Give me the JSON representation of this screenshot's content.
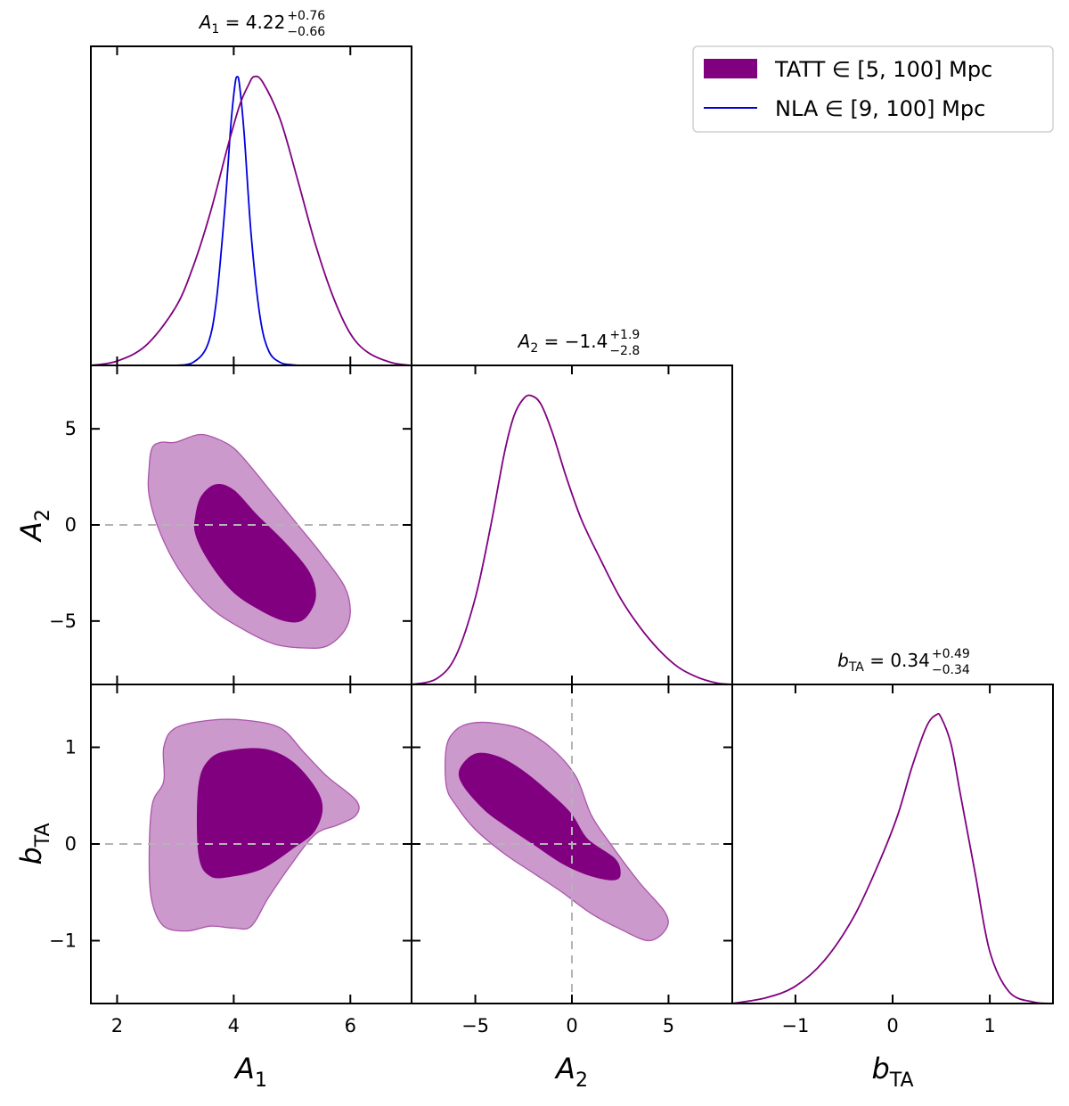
{
  "chart_data": {
    "type": "corner",
    "parameters": [
      {
        "name": "A_1",
        "label": "A",
        "subscript": "1",
        "range": [
          1.55,
          7.05
        ],
        "ticks": [
          2,
          4,
          6
        ],
        "title": {
          "symbol": "A",
          "sub": "1",
          "value": " = 4.22",
          "plus": "+0.76",
          "minus": "−0.66"
        }
      },
      {
        "name": "A_2",
        "label": "A",
        "subscript": "2",
        "range": [
          -8.3,
          8.3
        ],
        "ticks": [
          -5,
          0,
          5
        ],
        "title": {
          "symbol": "A",
          "sub": "2",
          "value": " = −1.4",
          "plus": "+1.9",
          "minus": "−2.8"
        }
      },
      {
        "name": "b_TA",
        "label": "b",
        "subscript": "TA",
        "range": [
          -1.65,
          1.65
        ],
        "ticks": [
          -1,
          0,
          1
        ],
        "title": {
          "symbol": "b",
          "sub": "TA",
          "value": " = 0.34",
          "plus": "+0.49",
          "minus": "−0.34"
        }
      }
    ],
    "tick_labels": {
      "A_1": [
        "2",
        "4",
        "6"
      ],
      "A_2": [
        "−5",
        "0",
        "5"
      ],
      "b_TA": [
        "−1",
        "0",
        "1"
      ]
    },
    "series": [
      {
        "name": "TATT",
        "legend": "TATT  ∈ [5, 100] Mpc",
        "color": "#800080",
        "light_color": "#cc99cc",
        "style": "filled"
      },
      {
        "name": "NLA",
        "legend": "NLA  ∈ [9, 100] Mpc",
        "color": "#0000dd",
        "style": "line"
      }
    ],
    "marginals": {
      "A_1": {
        "TATT": {
          "x": [
            1.55,
            2.0,
            2.5,
            3.0,
            3.3,
            3.6,
            3.9,
            4.1,
            4.25,
            4.35,
            4.5,
            4.8,
            5.1,
            5.4,
            5.7,
            6.0,
            6.3,
            6.7,
            7.05
          ],
          "y": [
            0,
            0.015,
            0.07,
            0.2,
            0.34,
            0.53,
            0.76,
            0.9,
            0.97,
            1.0,
            0.98,
            0.85,
            0.64,
            0.42,
            0.24,
            0.11,
            0.045,
            0.01,
            0
          ]
        },
        "NLA": {
          "x": [
            3.0,
            3.3,
            3.55,
            3.7,
            3.85,
            3.95,
            4.02,
            4.06,
            4.1,
            4.18,
            4.3,
            4.45,
            4.6,
            4.8,
            5.0,
            5.2
          ],
          "y": [
            0,
            0.01,
            0.07,
            0.22,
            0.55,
            0.83,
            0.97,
            1.0,
            0.97,
            0.8,
            0.45,
            0.17,
            0.05,
            0.01,
            0.002,
            0
          ]
        }
      },
      "A_2": {
        "TATT": {
          "x": [
            -8.3,
            -7.0,
            -6.0,
            -5.0,
            -4.2,
            -3.5,
            -3.0,
            -2.5,
            -2.1,
            -1.6,
            -1.0,
            -0.3,
            0.5,
            1.5,
            2.5,
            3.5,
            4.5,
            5.5,
            6.5,
            7.5,
            8.3
          ],
          "y": [
            0,
            0.02,
            0.1,
            0.3,
            0.55,
            0.8,
            0.93,
            0.99,
            1.0,
            0.97,
            0.87,
            0.72,
            0.57,
            0.43,
            0.3,
            0.2,
            0.12,
            0.06,
            0.025,
            0.005,
            0
          ]
        }
      },
      "b_TA": {
        "TATT": {
          "x": [
            -1.65,
            -1.3,
            -1.0,
            -0.7,
            -0.4,
            -0.15,
            0.05,
            0.2,
            0.35,
            0.45,
            0.5,
            0.6,
            0.7,
            0.85,
            1.0,
            1.2,
            1.45,
            1.65
          ],
          "y": [
            0,
            0.02,
            0.06,
            0.15,
            0.3,
            0.48,
            0.65,
            0.82,
            0.96,
            1.0,
            0.99,
            0.9,
            0.72,
            0.45,
            0.18,
            0.04,
            0.005,
            0
          ]
        }
      }
    },
    "contours": [
      {
        "x": "A_1",
        "y": "A_2",
        "outer": [
          [
            2.55,
            3.0
          ],
          [
            2.6,
            4.0
          ],
          [
            2.75,
            4.3
          ],
          [
            3.0,
            4.3
          ],
          [
            3.4,
            4.7
          ],
          [
            3.7,
            4.5
          ],
          [
            4.0,
            4.0
          ],
          [
            4.3,
            3.0
          ],
          [
            4.7,
            1.5
          ],
          [
            5.1,
            0
          ],
          [
            5.5,
            -1.5
          ],
          [
            5.9,
            -3.2
          ],
          [
            6.0,
            -4.5
          ],
          [
            5.9,
            -5.5
          ],
          [
            5.6,
            -6.3
          ],
          [
            5.2,
            -6.4
          ],
          [
            4.7,
            -6.2
          ],
          [
            4.2,
            -5.5
          ],
          [
            3.6,
            -4.3
          ],
          [
            3.1,
            -2.5
          ],
          [
            2.75,
            -0.5
          ],
          [
            2.55,
            1.5
          ]
        ],
        "inner": [
          [
            3.35,
            0.5
          ],
          [
            3.45,
            1.5
          ],
          [
            3.7,
            2.1
          ],
          [
            4.0,
            1.8
          ],
          [
            4.4,
            0.5
          ],
          [
            4.9,
            -1.0
          ],
          [
            5.3,
            -2.5
          ],
          [
            5.4,
            -3.8
          ],
          [
            5.2,
            -4.9
          ],
          [
            4.9,
            -5.0
          ],
          [
            4.5,
            -4.5
          ],
          [
            4.0,
            -3.5
          ],
          [
            3.6,
            -2.0
          ],
          [
            3.35,
            -0.5
          ]
        ]
      },
      {
        "x": "A_1",
        "y": "b_TA",
        "outer": [
          [
            2.6,
            0.4
          ],
          [
            2.8,
            0.65
          ],
          [
            2.8,
            1.0
          ],
          [
            3.0,
            1.2
          ],
          [
            3.6,
            1.28
          ],
          [
            4.2,
            1.28
          ],
          [
            4.8,
            1.2
          ],
          [
            5.2,
            0.95
          ],
          [
            5.6,
            0.7
          ],
          [
            6.1,
            0.45
          ],
          [
            6.1,
            0.3
          ],
          [
            5.8,
            0.2
          ],
          [
            5.4,
            0.1
          ],
          [
            5.0,
            -0.2
          ],
          [
            4.6,
            -0.55
          ],
          [
            4.3,
            -0.85
          ],
          [
            4.0,
            -0.87
          ],
          [
            3.6,
            -0.85
          ],
          [
            3.2,
            -0.9
          ],
          [
            2.8,
            -0.85
          ],
          [
            2.6,
            -0.6
          ],
          [
            2.55,
            -0.2
          ]
        ],
        "inner": [
          [
            3.4,
            0.6
          ],
          [
            3.6,
            0.88
          ],
          [
            4.0,
            0.97
          ],
          [
            4.6,
            0.97
          ],
          [
            5.1,
            0.8
          ],
          [
            5.5,
            0.45
          ],
          [
            5.4,
            0.15
          ],
          [
            5.0,
            -0.05
          ],
          [
            4.5,
            -0.25
          ],
          [
            4.0,
            -0.33
          ],
          [
            3.6,
            -0.33
          ],
          [
            3.4,
            -0.1
          ]
        ]
      },
      {
        "x": "A_2",
        "y": "b_TA",
        "outer": [
          [
            -6.5,
            1.0
          ],
          [
            -6.5,
            0.6
          ],
          [
            -6.0,
            0.4
          ],
          [
            -5.0,
            0.15
          ],
          [
            -3.5,
            -0.1
          ],
          [
            -2.0,
            -0.3
          ],
          [
            -0.5,
            -0.5
          ],
          [
            1.0,
            -0.72
          ],
          [
            2.5,
            -0.88
          ],
          [
            4.0,
            -1.0
          ],
          [
            4.9,
            -0.87
          ],
          [
            4.8,
            -0.7
          ],
          [
            3.5,
            -0.4
          ],
          [
            2.0,
            0.0
          ],
          [
            1.0,
            0.3
          ],
          [
            0.2,
            0.7
          ],
          [
            -1.0,
            0.98
          ],
          [
            -2.5,
            1.18
          ],
          [
            -4.0,
            1.25
          ],
          [
            -5.2,
            1.25
          ],
          [
            -6.0,
            1.18
          ]
        ],
        "inner": [
          [
            -5.8,
            0.77
          ],
          [
            -5.6,
            0.6
          ],
          [
            -4.5,
            0.35
          ],
          [
            -3.5,
            0.2
          ],
          [
            -2.0,
            0.0
          ],
          [
            -0.5,
            -0.2
          ],
          [
            1.0,
            -0.33
          ],
          [
            2.2,
            -0.37
          ],
          [
            2.5,
            -0.3
          ],
          [
            2.2,
            -0.15
          ],
          [
            0.8,
            0.05
          ],
          [
            0.0,
            0.3
          ],
          [
            -1.0,
            0.5
          ],
          [
            -2.5,
            0.75
          ],
          [
            -3.8,
            0.9
          ],
          [
            -5.0,
            0.93
          ]
        ]
      }
    ],
    "reference_lines": {
      "A_2": 0,
      "b_TA": 0
    }
  }
}
